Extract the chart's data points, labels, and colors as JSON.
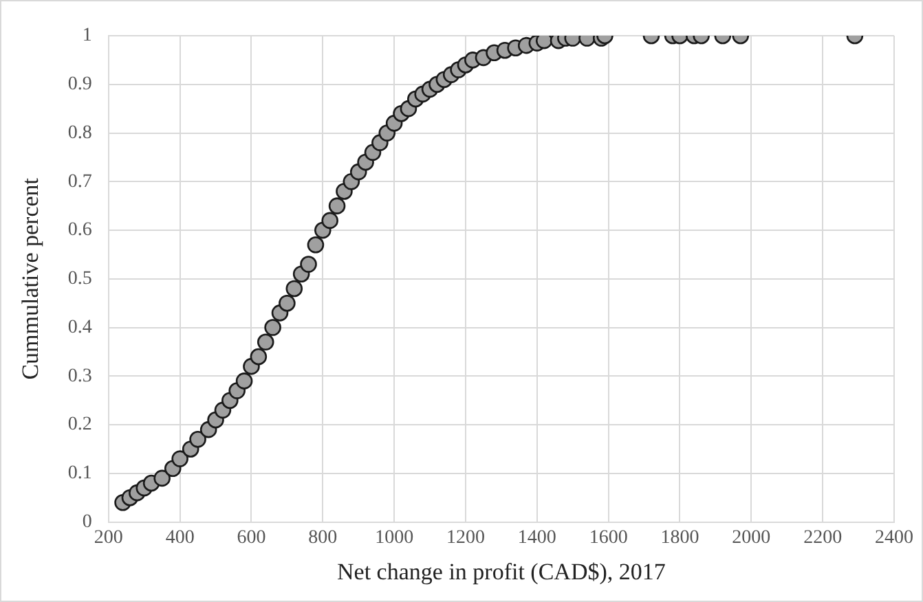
{
  "chart_data": {
    "type": "scatter",
    "xlabel": "Net change in profit (CAD$), 2017",
    "ylabel": "Cummulative percent",
    "xlim": [
      200,
      2400
    ],
    "xticks": [
      200,
      400,
      600,
      800,
      1000,
      1200,
      1400,
      1600,
      1800,
      2000,
      2200,
      2400
    ],
    "ylim": [
      0,
      1
    ],
    "yticks": [
      0,
      0.1,
      0.2,
      0.3,
      0.4,
      0.5,
      0.6,
      0.7,
      0.8,
      0.9,
      1
    ],
    "grid": true,
    "legend": false,
    "marker": "circle",
    "series": [
      {
        "color": "#a0a0a0",
        "x": [
          240,
          260,
          280,
          300,
          320,
          350,
          380,
          400,
          430,
          450,
          480,
          500,
          520,
          540,
          560,
          580,
          600,
          620,
          640,
          660,
          680,
          700,
          720,
          740,
          760,
          780,
          800,
          820,
          840,
          860,
          880,
          900,
          920,
          940,
          960,
          980,
          1000,
          1020,
          1040,
          1060,
          1080,
          1100,
          1120,
          1140,
          1160,
          1180,
          1200,
          1220,
          1250,
          1280,
          1310,
          1340,
          1370,
          1400,
          1420,
          1460,
          1480,
          1500,
          1540,
          1580,
          1590,
          1720,
          1780,
          1800,
          1840,
          1860,
          1920,
          1970,
          2290
        ],
        "values": [
          0.04,
          0.05,
          0.06,
          0.07,
          0.08,
          0.09,
          0.11,
          0.13,
          0.15,
          0.17,
          0.19,
          0.21,
          0.23,
          0.25,
          0.27,
          0.29,
          0.32,
          0.34,
          0.37,
          0.4,
          0.43,
          0.45,
          0.48,
          0.51,
          0.53,
          0.57,
          0.6,
          0.62,
          0.65,
          0.68,
          0.7,
          0.72,
          0.74,
          0.76,
          0.78,
          0.8,
          0.82,
          0.84,
          0.85,
          0.87,
          0.88,
          0.89,
          0.9,
          0.91,
          0.92,
          0.93,
          0.94,
          0.95,
          0.955,
          0.965,
          0.97,
          0.975,
          0.98,
          0.985,
          0.99,
          0.99,
          0.995,
          0.995,
          0.995,
          0.995,
          1,
          1,
          1,
          1,
          1,
          1,
          1,
          1,
          1
        ]
      }
    ]
  }
}
